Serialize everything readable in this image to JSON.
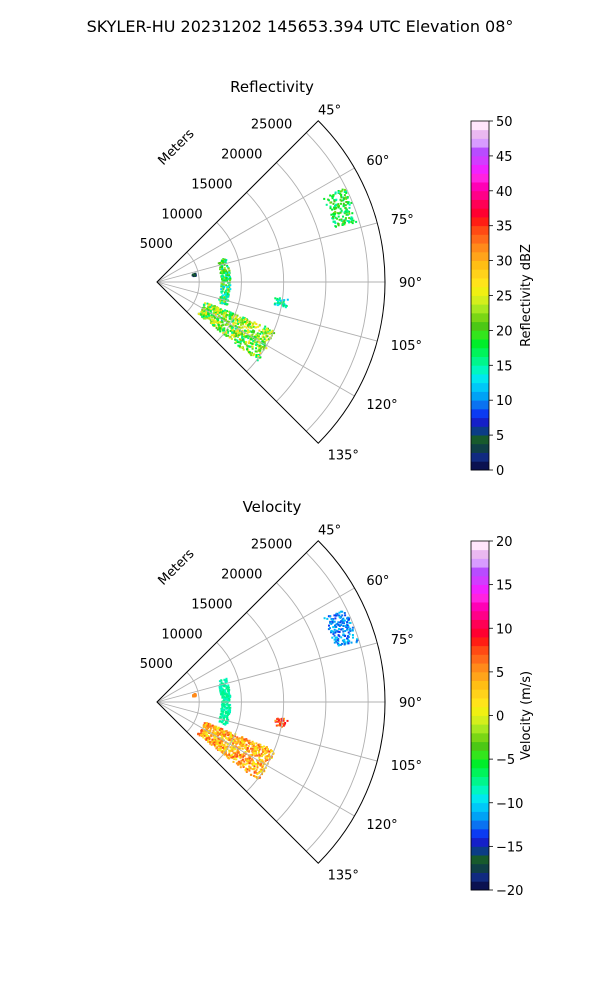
{
  "figure": {
    "suptitle": "SKYLER-HU  20231202  145653.394 UTC Elevation 08°"
  },
  "chart_data": [
    {
      "type": "heatmap",
      "projection": "polar-sector",
      "title": "Reflectivity",
      "radial_label": "Meters",
      "radial_ticks": [
        5000,
        10000,
        15000,
        20000,
        25000
      ],
      "radial_tick_labels": [
        "5000",
        "10000",
        "15000",
        "20000",
        "25000"
      ],
      "r_max": 27000,
      "theta_range_deg": [
        45,
        135
      ],
      "angle_ticks": [
        45,
        60,
        75,
        90,
        105,
        120,
        135
      ],
      "angle_tick_labels": [
        "45°",
        "60°",
        "75°",
        "90°",
        "105°",
        "120°",
        "135°"
      ],
      "grid": true,
      "colorbar": {
        "label": "Reflectivity dBZ",
        "min": 0,
        "max": 50,
        "ticks": [
          0,
          5,
          10,
          15,
          20,
          25,
          30,
          35,
          40,
          45,
          50
        ],
        "tick_labels": [
          "0",
          "5",
          "10",
          "15",
          "20",
          "25",
          "30",
          "35",
          "40",
          "45",
          "50"
        ],
        "levels": [
          "#0a1150",
          "#102a80",
          "#0f3f46",
          "#175a2c",
          "#0b3d86",
          "#1520c8",
          "#0b3bf2",
          "#0a72f0",
          "#00a2f5",
          "#00c8f8",
          "#00e8ef",
          "#00f7c0",
          "#00f68c",
          "#00f45a",
          "#00ee2a",
          "#33e51c",
          "#4cc815",
          "#7ad615",
          "#a8e820",
          "#d4ef1c",
          "#f0f012",
          "#ffe41a",
          "#ffd21a",
          "#ffbe14",
          "#ffa41a",
          "#ff8a1a",
          "#ff6a1a",
          "#ff4a14",
          "#ff1e14",
          "#ff0030",
          "#ff0055",
          "#ff0088",
          "#ff00b5",
          "#ff22e0",
          "#f022ff",
          "#d23cff",
          "#b84cff",
          "#d89cff",
          "#eab8f0",
          "#ffe6fb"
        ]
      },
      "echoes": [
        {
          "name": "echo-ne-cluster",
          "r": [
            22000,
            24800
          ],
          "theta": [
            63,
            73
          ],
          "value_range": [
            14,
            22
          ]
        },
        {
          "name": "echo-near-arc",
          "r": [
            7500,
            8600
          ],
          "theta": [
            70,
            108
          ],
          "value_range": [
            12,
            24
          ]
        },
        {
          "name": "echo-small-blob-east",
          "r": [
            14000,
            15500
          ],
          "theta": [
            97,
            101
          ],
          "value_range": [
            12,
            18
          ]
        },
        {
          "name": "echo-main-sw",
          "r": [
            6000,
            15000
          ],
          "theta": [
            112,
            128
          ],
          "value_range": [
            15,
            28
          ]
        },
        {
          "name": "echo-weak-nw",
          "r": [
            4200,
            4600
          ],
          "theta": [
            76,
            80
          ],
          "value_range": [
            0,
            5
          ]
        }
      ]
    },
    {
      "type": "heatmap",
      "projection": "polar-sector",
      "title": "Velocity",
      "radial_label": "Meters",
      "radial_ticks": [
        5000,
        10000,
        15000,
        20000,
        25000
      ],
      "radial_tick_labels": [
        "5000",
        "10000",
        "15000",
        "20000",
        "25000"
      ],
      "r_max": 27000,
      "theta_range_deg": [
        45,
        135
      ],
      "angle_ticks": [
        45,
        60,
        75,
        90,
        105,
        120,
        135
      ],
      "angle_tick_labels": [
        "45°",
        "60°",
        "75°",
        "90°",
        "105°",
        "120°",
        "135°"
      ],
      "grid": true,
      "colorbar": {
        "label": "Velocity (m/s)",
        "min": -20,
        "max": 20,
        "ticks": [
          -20,
          -15,
          -10,
          -5,
          0,
          5,
          10,
          15,
          20
        ],
        "tick_labels": [
          "−20",
          "−15",
          "−10",
          "−5",
          "0",
          "5",
          "10",
          "15",
          "20"
        ],
        "levels": [
          "#0a1150",
          "#102a80",
          "#0f3f46",
          "#175a2c",
          "#0b3d86",
          "#1520c8",
          "#0b3bf2",
          "#0a72f0",
          "#00a2f5",
          "#00c8f8",
          "#00e8ef",
          "#00f7c0",
          "#00f68c",
          "#00f45a",
          "#00ee2a",
          "#33e51c",
          "#4cc815",
          "#7ad615",
          "#a8e820",
          "#d4ef1c",
          "#f0f012",
          "#ffe41a",
          "#ffd21a",
          "#ffbe14",
          "#ffa41a",
          "#ff8a1a",
          "#ff6a1a",
          "#ff4a14",
          "#ff1e14",
          "#ff0030",
          "#ff0055",
          "#ff0088",
          "#ff00b5",
          "#ff22e0",
          "#f022ff",
          "#d23cff",
          "#b84cff",
          "#d89cff",
          "#eab8f0",
          "#ffe6fb"
        ]
      },
      "echoes": [
        {
          "name": "echo-ne-cluster",
          "r": [
            22000,
            24800
          ],
          "theta": [
            63,
            73
          ],
          "value_range": [
            -14,
            -10
          ]
        },
        {
          "name": "echo-near-arc",
          "r": [
            7500,
            8600
          ],
          "theta": [
            70,
            108
          ],
          "value_range": [
            -9,
            -7
          ]
        },
        {
          "name": "echo-small-blob-east",
          "r": [
            14000,
            15500
          ],
          "theta": [
            97,
            101
          ],
          "value_range": [
            4,
            10
          ]
        },
        {
          "name": "echo-main-sw",
          "r": [
            6000,
            15000
          ],
          "theta": [
            112,
            128
          ],
          "value_range": [
            0,
            8
          ]
        },
        {
          "name": "echo-weak-nw",
          "r": [
            4200,
            4600
          ],
          "theta": [
            76,
            80
          ],
          "value_range": [
            5,
            6
          ]
        }
      ]
    }
  ]
}
